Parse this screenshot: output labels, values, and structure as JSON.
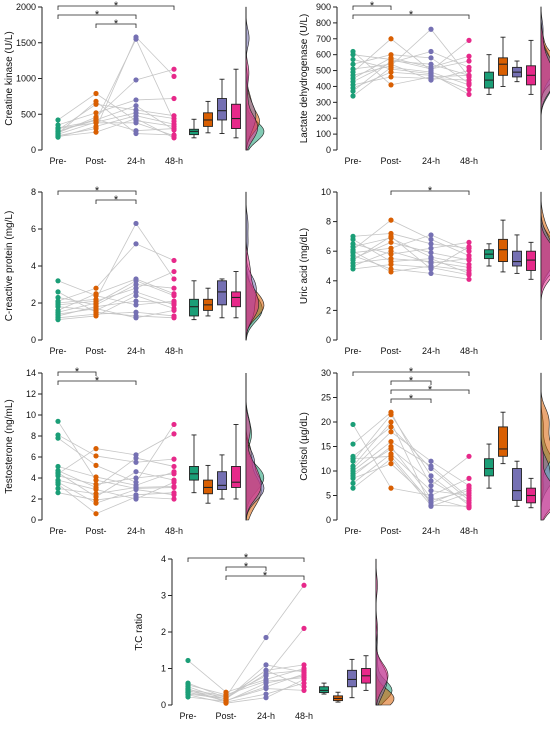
{
  "colors": {
    "pre": "#1b9e77",
    "post": "#d95f02",
    "h24": "#7570b3",
    "h48": "#e7298a",
    "connector": "#c6c6c6",
    "axis": "#222222"
  },
  "significance_symbol": "*",
  "chart_data": [
    {
      "id": "ck",
      "type": "scatter",
      "ylabel": "Creatine kinase (U/L)",
      "categories": [
        "Pre-",
        "Post-",
        "24-h",
        "48-h"
      ],
      "ylim": [
        0,
        2000
      ],
      "yticks": [
        0,
        500,
        1000,
        1500,
        2000
      ],
      "subjects": [
        [
          180,
          330,
          480,
          360
        ],
        [
          220,
          390,
          520,
          440
        ],
        [
          260,
          420,
          620,
          280
        ],
        [
          300,
          380,
          380,
          200
        ],
        [
          240,
          460,
          980,
          1130
        ],
        [
          200,
          300,
          1580,
          1030
        ],
        [
          350,
          520,
          700,
          720
        ],
        [
          420,
          790,
          410,
          330
        ],
        [
          280,
          640,
          560,
          480
        ],
        [
          260,
          430,
          270,
          300
        ],
        [
          190,
          250,
          440,
          170
        ],
        [
          310,
          410,
          1550,
          400
        ],
        [
          230,
          680,
          230,
          210
        ]
      ],
      "boxes": [
        {
          "min": 170,
          "q1": 215,
          "median": 260,
          "q3": 290,
          "max": 430
        },
        {
          "min": 240,
          "q1": 330,
          "median": 420,
          "q3": 520,
          "max": 680
        },
        {
          "min": 230,
          "q1": 420,
          "median": 550,
          "q3": 720,
          "max": 990
        },
        {
          "min": 170,
          "q1": 300,
          "median": 440,
          "q3": 640,
          "max": 1130
        }
      ],
      "comparisons": [
        [
          0,
          3
        ],
        [
          0,
          2
        ],
        [
          1,
          2
        ]
      ]
    },
    {
      "id": "ldh",
      "type": "scatter",
      "ylabel": "Lactate dehydrogenase (U/L)",
      "categories": [
        "Pre-",
        "Post-",
        "24-h",
        "48-h"
      ],
      "ylim": [
        0,
        900
      ],
      "yticks": [
        0,
        100,
        200,
        300,
        400,
        500,
        600,
        700,
        800,
        900
      ],
      "subjects": [
        [
          340,
          520,
          490,
          410
        ],
        [
          370,
          560,
          540,
          470
        ],
        [
          390,
          490,
          470,
          380
        ],
        [
          410,
          460,
          450,
          440
        ],
        [
          430,
          550,
          620,
          520
        ],
        [
          450,
          580,
          520,
          590
        ],
        [
          470,
          530,
          760,
          460
        ],
        [
          490,
          700,
          500,
          690
        ],
        [
          510,
          540,
          440,
          500
        ],
        [
          540,
          600,
          580,
          420
        ],
        [
          570,
          510,
          480,
          350
        ],
        [
          600,
          570,
          510,
          560
        ],
        [
          620,
          410,
          460,
          470
        ]
      ],
      "boxes": [
        {
          "min": 350,
          "q1": 390,
          "median": 440,
          "q3": 490,
          "max": 600
        },
        {
          "min": 400,
          "q1": 470,
          "median": 540,
          "q3": 580,
          "max": 710
        },
        {
          "min": 430,
          "q1": 460,
          "median": 490,
          "q3": 520,
          "max": 560
        },
        {
          "min": 350,
          "q1": 410,
          "median": 470,
          "q3": 530,
          "max": 690
        }
      ],
      "comparisons": [
        [
          0,
          1
        ],
        [
          0,
          3
        ]
      ]
    },
    {
      "id": "crp",
      "type": "scatter",
      "ylabel": "C-reactive protein (mg/L)",
      "categories": [
        "Pre-",
        "Post-",
        "24-h",
        "48-h"
      ],
      "ylim": [
        0,
        8
      ],
      "yticks": [
        0,
        2,
        4,
        6,
        8
      ],
      "subjects": [
        [
          1.2,
          1.4,
          1.5,
          1.3
        ],
        [
          1.3,
          1.8,
          2.1,
          2.0
        ],
        [
          1.5,
          2.0,
          3.2,
          2.4
        ],
        [
          1.8,
          1.6,
          2.6,
          1.9
        ],
        [
          2.0,
          2.2,
          6.3,
          3.3
        ],
        [
          2.1,
          2.8,
          5.2,
          4.3
        ],
        [
          2.3,
          1.9,
          3.0,
          2.8
        ],
        [
          3.2,
          2.4,
          1.9,
          2.1
        ],
        [
          1.1,
          1.3,
          2.4,
          1.7
        ],
        [
          1.6,
          2.5,
          3.3,
          2.5
        ],
        [
          2.6,
          1.5,
          1.3,
          1.2
        ],
        [
          1.9,
          2.1,
          2.8,
          3.7
        ],
        [
          1.4,
          1.7,
          1.2,
          1.6
        ]
      ],
      "boxes": [
        {
          "min": 1.1,
          "q1": 1.3,
          "median": 1.8,
          "q3": 2.2,
          "max": 3.2
        },
        {
          "min": 1.3,
          "q1": 1.6,
          "median": 1.9,
          "q3": 2.2,
          "max": 2.8
        },
        {
          "min": 1.2,
          "q1": 1.9,
          "median": 2.6,
          "q3": 3.2,
          "max": 3.3
        },
        {
          "min": 1.2,
          "q1": 1.8,
          "median": 2.3,
          "q3": 2.6,
          "max": 3.7
        }
      ],
      "comparisons": [
        [
          0,
          2
        ],
        [
          1,
          2
        ]
      ]
    },
    {
      "id": "ua",
      "type": "scatter",
      "ylabel": "Uric acid (mg/dL)",
      "categories": [
        "Pre-",
        "Post-",
        "24-h",
        "48-h"
      ],
      "ylim": [
        0,
        10
      ],
      "yticks": [
        0,
        2,
        4,
        6,
        8,
        10
      ],
      "subjects": [
        [
          4.8,
          5.1,
          4.9,
          4.4
        ],
        [
          5.2,
          5.5,
          5.3,
          4.9
        ],
        [
          5.5,
          6.6,
          5.9,
          5.4
        ],
        [
          5.9,
          6.2,
          7.1,
          6.0
        ],
        [
          6.1,
          8.1,
          6.8,
          5.7
        ],
        [
          6.3,
          6.9,
          5.6,
          5.1
        ],
        [
          6.5,
          5.8,
          6.2,
          6.6
        ],
        [
          7.0,
          7.2,
          6.5,
          6.2
        ],
        [
          5.7,
          4.8,
          4.5,
          4.1
        ],
        [
          5.0,
          6.0,
          5.2,
          5.5
        ],
        [
          6.0,
          4.6,
          5.0,
          4.7
        ],
        [
          5.4,
          7.0,
          4.8,
          6.3
        ],
        [
          6.8,
          5.3,
          5.5,
          4.5
        ]
      ],
      "boxes": [
        {
          "min": 5.0,
          "q1": 5.5,
          "median": 5.8,
          "q3": 6.1,
          "max": 6.5
        },
        {
          "min": 4.6,
          "q1": 5.3,
          "median": 6.1,
          "q3": 6.8,
          "max": 8.1
        },
        {
          "min": 4.5,
          "q1": 5.0,
          "median": 5.3,
          "q3": 6.0,
          "max": 7.1
        },
        {
          "min": 4.1,
          "q1": 4.7,
          "median": 5.4,
          "q3": 6.0,
          "max": 6.6
        }
      ],
      "comparisons": [
        [
          1,
          3
        ]
      ]
    },
    {
      "id": "testo",
      "type": "scatter",
      "ylabel": "Testosterone (ng/mL)",
      "categories": [
        "Pre-",
        "Post-",
        "24-h",
        "48-h"
      ],
      "ylim": [
        0,
        14
      ],
      "yticks": [
        0,
        2,
        4,
        6,
        8,
        10,
        12,
        14
      ],
      "subjects": [
        [
          2.6,
          1.9,
          2.4,
          2.6
        ],
        [
          3.0,
          2.5,
          3.1,
          3.2
        ],
        [
          3.8,
          2.9,
          2.0,
          3.6
        ],
        [
          4.2,
          3.4,
          4.0,
          4.4
        ],
        [
          4.4,
          6.8,
          6.2,
          8.2
        ],
        [
          4.7,
          3.1,
          5.9,
          5.1
        ],
        [
          5.1,
          4.1,
          3.3,
          4.6
        ],
        [
          7.8,
          5.2,
          3.6,
          9.1
        ],
        [
          9.4,
          3.8,
          3.0,
          3.1
        ],
        [
          3.4,
          0.6,
          2.2,
          2.0
        ],
        [
          4.5,
          2.2,
          4.6,
          3.8
        ],
        [
          8.1,
          6.1,
          5.5,
          5.8
        ],
        [
          3.6,
          1.6,
          2.9,
          2.4
        ]
      ],
      "boxes": [
        {
          "min": 2.6,
          "q1": 3.8,
          "median": 4.4,
          "q3": 5.1,
          "max": 8.1
        },
        {
          "min": 1.6,
          "q1": 2.5,
          "median": 3.1,
          "q3": 3.8,
          "max": 5.2
        },
        {
          "min": 2.0,
          "q1": 2.9,
          "median": 3.3,
          "q3": 4.6,
          "max": 6.2
        },
        {
          "min": 2.0,
          "q1": 3.1,
          "median": 3.6,
          "q3": 5.1,
          "max": 9.1
        }
      ],
      "comparisons": [
        [
          0,
          1
        ],
        [
          0,
          2
        ]
      ]
    },
    {
      "id": "cort",
      "type": "scatter",
      "ylabel": "Cortisol (µg/dL)",
      "categories": [
        "Pre-",
        "Post-",
        "24-h",
        "48-h"
      ],
      "ylim": [
        0,
        30
      ],
      "yticks": [
        0,
        5,
        10,
        15,
        20,
        25,
        30
      ],
      "subjects": [
        [
          6.5,
          12.5,
          3.0,
          2.8
        ],
        [
          7.5,
          13.5,
          6.0,
          5.0
        ],
        [
          8.5,
          11.5,
          4.0,
          6.0
        ],
        [
          9.5,
          14.5,
          8.0,
          3.5
        ],
        [
          10.0,
          16.0,
          11.0,
          4.5
        ],
        [
          10.5,
          18.0,
          12.0,
          7.0
        ],
        [
          11.0,
          20.0,
          2.8,
          5.5
        ],
        [
          12.0,
          21.5,
          9.0,
          3.0
        ],
        [
          13.0,
          19.0,
          10.5,
          4.0
        ],
        [
          15.5,
          22.0,
          7.0,
          13.0
        ],
        [
          19.5,
          6.5,
          5.0,
          8.5
        ],
        [
          12.5,
          13.0,
          3.5,
          6.5
        ],
        [
          9.0,
          15.0,
          4.5,
          2.5
        ]
      ],
      "boxes": [
        {
          "min": 6.5,
          "q1": 9.0,
          "median": 10.5,
          "q3": 12.5,
          "max": 15.5
        },
        {
          "min": 11.5,
          "q1": 13.0,
          "median": 14.5,
          "q3": 19.0,
          "max": 22.0
        },
        {
          "min": 2.8,
          "q1": 4.0,
          "median": 6.0,
          "q3": 10.5,
          "max": 12.0
        },
        {
          "min": 2.5,
          "q1": 3.5,
          "median": 5.0,
          "q3": 6.5,
          "max": 8.5
        }
      ],
      "comparisons": [
        [
          0,
          3
        ],
        [
          1,
          2
        ],
        [
          1,
          3
        ],
        [
          1,
          2
        ]
      ]
    },
    {
      "id": "tc",
      "type": "scatter",
      "ylabel": "T:C ratio",
      "categories": [
        "Pre-",
        "Post-",
        "24-h",
        "48-h"
      ],
      "ylim": [
        0,
        4
      ],
      "yticks": [
        0,
        1,
        2,
        3,
        4
      ],
      "subjects": [
        [
          0.22,
          0.1,
          0.6,
          0.8
        ],
        [
          0.3,
          0.18,
          0.95,
          1.1
        ],
        [
          0.35,
          0.12,
          0.45,
          0.4
        ],
        [
          0.38,
          0.22,
          1.85,
          3.28
        ],
        [
          0.42,
          0.25,
          0.8,
          2.1
        ],
        [
          0.45,
          0.08,
          0.3,
          0.6
        ],
        [
          0.5,
          0.15,
          1.1,
          0.9
        ],
        [
          0.55,
          0.28,
          0.65,
          0.75
        ],
        [
          0.6,
          0.2,
          0.95,
          0.5
        ],
        [
          1.22,
          0.35,
          0.7,
          1.0
        ],
        [
          0.28,
          0.05,
          0.2,
          0.7
        ],
        [
          0.4,
          0.12,
          0.5,
          0.85
        ],
        [
          0.34,
          0.18,
          0.85,
          0.95
        ]
      ],
      "boxes": [
        {
          "min": 0.3,
          "q1": 0.34,
          "median": 0.4,
          "q3": 0.5,
          "max": 0.6
        },
        {
          "min": 0.08,
          "q1": 0.12,
          "median": 0.18,
          "q3": 0.25,
          "max": 0.35
        },
        {
          "min": 0.2,
          "q1": 0.5,
          "median": 0.7,
          "q3": 0.95,
          "max": 1.25
        },
        {
          "min": 0.4,
          "q1": 0.6,
          "median": 0.8,
          "q3": 1.0,
          "max": 1.35
        }
      ],
      "comparisons": [
        [
          0,
          3
        ],
        [
          1,
          2
        ],
        [
          1,
          3
        ]
      ]
    }
  ]
}
